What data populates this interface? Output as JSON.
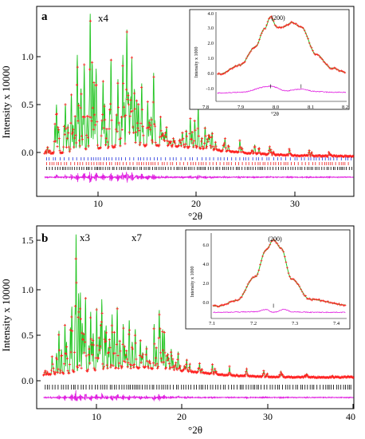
{
  "panel_a": {
    "letter": "a",
    "ylabel": "Intensity x 10000",
    "xlabel": "°2θ",
    "scale_note": "x4",
    "x_ticks": [
      "10",
      "20",
      "30"
    ],
    "y_ticks": [
      "0.0",
      "0.5",
      "1.0"
    ],
    "inset": {
      "peak_label": "(200)",
      "ylabel": "Intensity x 1000",
      "xlabel": "°2θ",
      "x_ticks": [
        "7.8",
        "7.9",
        "8.0",
        "8.1",
        "8.2"
      ],
      "y_ticks": [
        "-1.0",
        "0.0",
        "1.0",
        "2.0",
        "3.0",
        "4.0"
      ]
    }
  },
  "panel_b": {
    "letter": "b",
    "ylabel": "Intensity x 10000",
    "xlabel": "°2θ",
    "scale_note_1": "x3",
    "scale_note_2": "x7",
    "x_ticks": [
      "10",
      "20",
      "30",
      "40"
    ],
    "y_ticks": [
      "0.0",
      "0.5",
      "1.0",
      "1.5"
    ],
    "inset": {
      "peak_label": "(200)",
      "ylabel": "Intensity x 1000",
      "xlabel": "°2θ",
      "x_ticks": [
        "7.1",
        "7.2",
        "7.3",
        "7.4"
      ],
      "y_ticks": [
        "0.0",
        "2.0",
        "4.0",
        "6.0"
      ]
    }
  },
  "colors": {
    "observed": "#ff2020",
    "calculated": "#22c422",
    "difference": "#e020e0",
    "ticks_blue": "#2233dd",
    "ticks_red": "#ee2222",
    "ticks_black": "#000000"
  },
  "chart_data": [
    {
      "type": "line",
      "title": "",
      "xlabel": "°2θ",
      "ylabel": "Intensity x 10000",
      "xlim": [
        3.5,
        35.5
      ],
      "ylim": [
        -0.35,
        1.45
      ],
      "series": [
        {
          "x": [
            4.6,
            5.5,
            6.4,
            7.0,
            7.6,
            8.3,
            8.9,
            9.5,
            10.2,
            11.0,
            11.7,
            12.2,
            12.6,
            13.1,
            13.6,
            14.1,
            14.7,
            15.3,
            16.0,
            16.6,
            17.3,
            18.2,
            19.0,
            19.8,
            20.5,
            21.2,
            22.5,
            24.0,
            25.5,
            27.0,
            29.0,
            31.0,
            33.0
          ],
          "values": [
            0.12,
            0.52,
            0.53,
            0.62,
            0.99,
            0.9,
            1.38,
            0.86,
            0.75,
            0.95,
            0.76,
            0.99,
            1.23,
            0.97,
            0.56,
            0.72,
            0.55,
            0.82,
            0.41,
            0.31,
            0.2,
            0.26,
            0.39,
            0.5,
            0.31,
            0.26,
            0.2,
            0.18,
            0.14,
            0.12,
            0.1,
            0.09,
            0.07
          ]
        }
      ]
    },
    {
      "type": "line",
      "title": "",
      "xlabel": "°2θ",
      "ylabel": "Intensity x 10000",
      "xlim": [
        3.5,
        40.5
      ],
      "ylim": [
        -0.3,
        1.62
      ],
      "series": [
        {
          "x": [
            4.5,
            5.3,
            6.1,
            6.8,
            7.6,
            8.1,
            8.6,
            9.2,
            9.8,
            10.5,
            11.1,
            11.6,
            12.3,
            12.9,
            13.6,
            14.3,
            15.0,
            15.6,
            16.3,
            17.2,
            17.8,
            18.4,
            19.2,
            20.0,
            21.0,
            22.5,
            24.0,
            26.0,
            28.0,
            30.0,
            32.0,
            35.0,
            38.0,
            40.0
          ],
          "values": [
            0.1,
            0.25,
            0.52,
            0.59,
            0.78,
            1.55,
            0.92,
            0.87,
            0.72,
            0.76,
            0.85,
            0.58,
            0.69,
            0.77,
            0.59,
            0.64,
            0.54,
            0.43,
            0.36,
            0.59,
            0.74,
            0.52,
            0.33,
            0.3,
            0.22,
            0.18,
            0.17,
            0.14,
            0.12,
            0.1,
            0.09,
            0.07,
            0.05,
            0.04
          ]
        }
      ]
    },
    {
      "type": "line",
      "title": "",
      "xlabel": "°2θ",
      "ylabel": "Intensity x 1000",
      "xlim": [
        7.77,
        8.2
      ],
      "ylim": [
        -1.6,
        4.3
      ],
      "series": [
        {
          "x": [
            7.78,
            7.85,
            7.9,
            7.93,
            7.95,
            7.97,
            7.99,
            8.02,
            8.05,
            8.1,
            8.15,
            8.2
          ],
          "values": [
            0.2,
            0.8,
            2.0,
            3.2,
            4.0,
            3.3,
            3.3,
            3.6,
            3.3,
            1.5,
            0.6,
            0.3
          ]
        },
        {
          "x": [
            7.78,
            7.85,
            7.95,
            8.0,
            8.05,
            8.1,
            8.15,
            8.2
          ],
          "values": [
            -1.05,
            -1.0,
            -0.6,
            -0.9,
            -0.8,
            -0.95,
            -1.0,
            -1.0
          ]
        }
      ]
    },
    {
      "type": "line",
      "title": "",
      "xlabel": "°2θ",
      "ylabel": "Intensity x 1000",
      "xlim": [
        7.08,
        7.45
      ],
      "ylim": [
        -0.9,
        6.7
      ],
      "series": [
        {
          "x": [
            7.1,
            7.15,
            7.2,
            7.23,
            7.25,
            7.27,
            7.3,
            7.35,
            7.45
          ],
          "values": [
            0.2,
            0.7,
            2.8,
            5.2,
            6.1,
            5.4,
            2.6,
            0.8,
            0.3
          ]
        },
        {
          "x": [
            7.1,
            7.2,
            7.23,
            7.25,
            7.28,
            7.3,
            7.35,
            7.45
          ],
          "values": [
            -0.35,
            -0.3,
            -0.1,
            -0.35,
            -0.1,
            -0.3,
            -0.35,
            -0.35
          ]
        }
      ]
    }
  ]
}
